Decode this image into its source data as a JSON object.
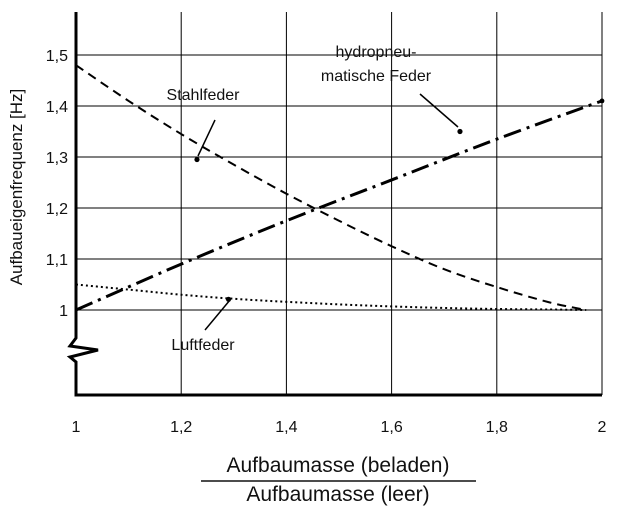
{
  "chart_data": {
    "type": "line",
    "title": "",
    "xlabel_numerator": "Aufbaumasse (beladen)",
    "xlabel_denominator": "Aufbaumasse (leer)",
    "ylabel": "Aufbaueigenfrequenz [Hz]",
    "xlim": [
      1,
      2
    ],
    "ylim": [
      0.87,
      1.5
    ],
    "grid": true,
    "y_axis_break": true,
    "x_ticks": [
      1,
      1.2,
      1.4,
      1.6,
      1.8,
      2
    ],
    "x_tick_labels": [
      "1",
      "1,2",
      "1,4",
      "1,6",
      "1,8",
      "2"
    ],
    "y_ticks": [
      1,
      1.1,
      1.2,
      1.3,
      1.4,
      1.5
    ],
    "y_tick_labels": [
      "1",
      "1,1",
      "1,2",
      "1,3",
      "1,4",
      "1,5"
    ],
    "series": [
      {
        "name": "Stahlfeder",
        "style": "dashed",
        "x": [
          1.0,
          1.1,
          1.2,
          1.3,
          1.4,
          1.5,
          1.6,
          1.7,
          1.8,
          1.9,
          1.97
        ],
        "y": [
          1.48,
          1.41,
          1.345,
          1.285,
          1.228,
          1.175,
          1.125,
          1.08,
          1.045,
          1.015,
          1.0
        ]
      },
      {
        "name": "hydropneumatische Feder",
        "style": "dashdot",
        "x": [
          1.0,
          1.2,
          1.4,
          1.6,
          1.8,
          2.0
        ],
        "y": [
          1.0,
          1.09,
          1.175,
          1.255,
          1.335,
          1.41
        ]
      },
      {
        "name": "Luftfeder",
        "style": "dotted",
        "x": [
          1.0,
          1.1,
          1.2,
          1.3,
          1.4,
          1.5,
          1.6,
          1.7,
          1.8,
          1.9,
          1.97
        ],
        "y": [
          1.05,
          1.04,
          1.03,
          1.022,
          1.016,
          1.011,
          1.007,
          1.004,
          1.002,
          1.001,
          1.0
        ]
      }
    ],
    "annotations": [
      {
        "series": 0,
        "lines": [
          "Stahlfeder"
        ],
        "x": 1.23,
        "y": 1.295
      },
      {
        "series": 1,
        "lines": [
          "hydropneu-",
          "matische Feder"
        ],
        "x": 1.73,
        "y": 1.35
      },
      {
        "series": 2,
        "lines": [
          "Luftfeder"
        ],
        "x": 1.29,
        "y": 1.021
      }
    ]
  }
}
